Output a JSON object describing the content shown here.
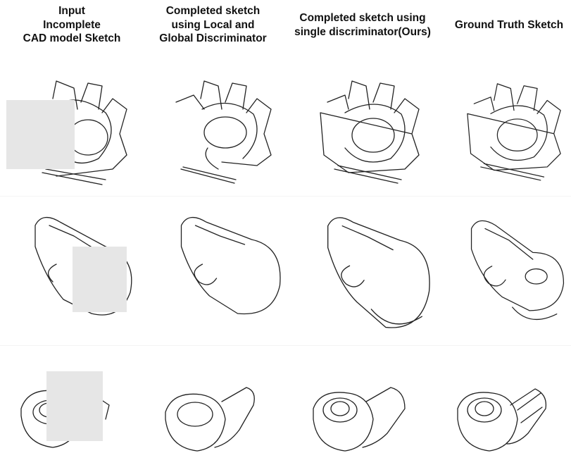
{
  "columns": [
    {
      "lines": [
        "Input",
        "Incomplete",
        "CAD model Sketch"
      ]
    },
    {
      "lines": [
        "Completed sketch",
        "using Local and",
        "Global Discriminator"
      ]
    },
    {
      "lines": [
        "Completed sketch using",
        "single discriminator(Ours)"
      ]
    },
    {
      "lines": [
        "Ground Truth Sketch"
      ]
    }
  ],
  "rows": [
    {
      "shape": "crown-ring"
    },
    {
      "shape": "bone-knob"
    },
    {
      "shape": "socket-elbow"
    }
  ],
  "mask_color": "#e6e6e6",
  "line_color": "#222222"
}
